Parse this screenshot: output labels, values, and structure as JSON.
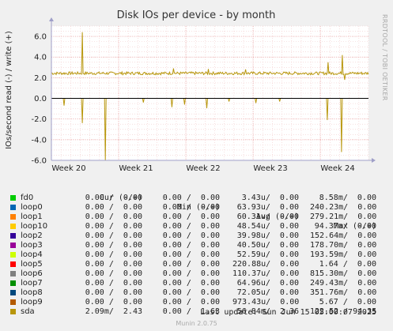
{
  "chart_data": {
    "type": "line",
    "title": "Disk IOs per device - by month",
    "ylabel": "IOs/second read (-) / write (+)",
    "watermark": "RRDTOOL / TOBI OETIKER",
    "ylim": [
      -6.0,
      7.0
    ],
    "y_ticks": [
      "6.0",
      "4.0",
      "2.0",
      "0.0",
      "-2.0",
      "-4.0",
      "-6.0"
    ],
    "x_ticks": [
      "Week 20",
      "Week 21",
      "Week 22",
      "Week 23",
      "Week 24"
    ],
    "grid": true,
    "series": [
      {
        "name": "sda",
        "color": "#b8960c",
        "write_baseline": 2.43,
        "write_spikes": [
          {
            "t": 0.098,
            "v": 6.4
          },
          {
            "t": 0.385,
            "v": 2.9
          },
          {
            "t": 0.495,
            "v": 2.85
          },
          {
            "t": 0.612,
            "v": 2.8
          },
          {
            "t": 0.873,
            "v": 3.5
          },
          {
            "t": 0.917,
            "v": 4.2
          },
          {
            "t": 0.925,
            "v": 1.8
          }
        ],
        "read_spikes": [
          {
            "t": 0.04,
            "v": -0.7
          },
          {
            "t": 0.098,
            "v": -2.4
          },
          {
            "t": 0.17,
            "v": -6.0
          },
          {
            "t": 0.29,
            "v": -0.4
          },
          {
            "t": 0.38,
            "v": -0.85
          },
          {
            "t": 0.42,
            "v": -0.6
          },
          {
            "t": 0.49,
            "v": -0.95
          },
          {
            "t": 0.56,
            "v": -0.3
          },
          {
            "t": 0.645,
            "v": -0.45
          },
          {
            "t": 0.72,
            "v": -0.3
          },
          {
            "t": 0.87,
            "v": -2.1
          },
          {
            "t": 0.915,
            "v": -5.2
          }
        ]
      }
    ]
  },
  "legend": {
    "headers": {
      "cur": "Cur (-/+)",
      "min": "Min (-/+)",
      "avg": "Avg (-/+)",
      "max": "Max (-/+)"
    },
    "rows": [
      {
        "name": "fd0",
        "color": "#00cc00",
        "cur": "0.00 /  0.00",
        "min": "0.00 /  0.00",
        "avg": "3.43u/  0.00",
        "max": "8.58m/  0.00"
      },
      {
        "name": "loop0",
        "color": "#0066b3",
        "cur": "0.00 /  0.00",
        "min": "0.00 /  0.00",
        "avg": "63.93u/  0.00",
        "max": "240.23m/  0.00"
      },
      {
        "name": "loop1",
        "color": "#ff8000",
        "cur": "0.00 /  0.00",
        "min": "0.00 /  0.00",
        "avg": "60.31u/  0.00",
        "max": "279.21m/  0.00"
      },
      {
        "name": "loop10",
        "color": "#ffcc00",
        "cur": "0.00 /  0.00",
        "min": "0.00 /  0.00",
        "avg": "48.54u/  0.00",
        "max": "94.37m/  0.00"
      },
      {
        "name": "loop2",
        "color": "#330099",
        "cur": "0.00 /  0.00",
        "min": "0.00 /  0.00",
        "avg": "39.98u/  0.00",
        "max": "152.64m/  0.00"
      },
      {
        "name": "loop3",
        "color": "#990099",
        "cur": "0.00 /  0.00",
        "min": "0.00 /  0.00",
        "avg": "40.50u/  0.00",
        "max": "178.70m/  0.00"
      },
      {
        "name": "loop4",
        "color": "#ccff00",
        "cur": "0.00 /  0.00",
        "min": "0.00 /  0.00",
        "avg": "52.59u/  0.00",
        "max": "193.59m/  0.00"
      },
      {
        "name": "loop5",
        "color": "#ff0000",
        "cur": "0.00 /  0.00",
        "min": "0.00 /  0.00",
        "avg": "220.88u/  0.00",
        "max": "1.64 /  0.00"
      },
      {
        "name": "loop6",
        "color": "#808080",
        "cur": "0.00 /  0.00",
        "min": "0.00 /  0.00",
        "avg": "110.37u/  0.00",
        "max": "815.30m/  0.00"
      },
      {
        "name": "loop7",
        "color": "#008f00",
        "cur": "0.00 /  0.00",
        "min": "0.00 /  0.00",
        "avg": "64.96u/  0.00",
        "max": "249.43m/  0.00"
      },
      {
        "name": "loop8",
        "color": "#00487d",
        "cur": "0.00 /  0.00",
        "min": "0.00 /  0.00",
        "avg": "72.05u/  0.00",
        "max": "351.76m/  0.00"
      },
      {
        "name": "loop9",
        "color": "#b35a00",
        "cur": "0.00 /  0.00",
        "min": "0.00 /  0.00",
        "avg": "973.43u/  0.00",
        "max": "5.67 /  0.00"
      },
      {
        "name": "sda",
        "color": "#b8960c",
        "cur": "2.09m/  2.43",
        "min": "0.00 /  1.63",
        "avg": "56.84m/  2.36",
        "max": "122.52 / 94.35"
      }
    ]
  },
  "footer": {
    "last_update": "Last update: Sun Jun 15 05:00:07 2025",
    "munin": "Munin 2.0.75"
  }
}
